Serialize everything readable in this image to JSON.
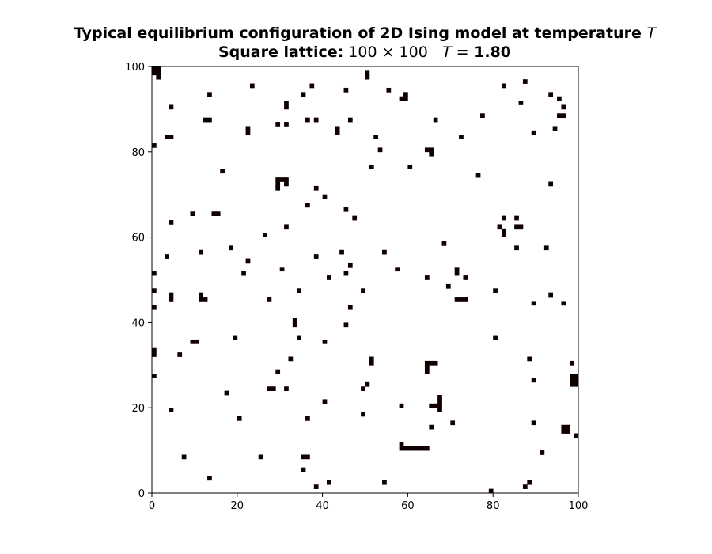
{
  "chart_data": {
    "type": "heatmap",
    "title_prefix": "Typical equilibrium configuration of 2D Ising model at temperature",
    "title_symbol": "T",
    "subtitle_label": "Square lattice:",
    "subtitle_size": "100 × 100",
    "subtitle_temp_symbol": "T",
    "subtitle_temp_value": "= 1.80",
    "grid_size": 100,
    "xlim": [
      0,
      100
    ],
    "ylim": [
      0,
      100
    ],
    "xticks": [
      0,
      20,
      40,
      60,
      80,
      100
    ],
    "yticks": [
      0,
      20,
      40,
      60,
      80,
      100
    ],
    "colors": {
      "spin_up": "#ffffff",
      "spin_down": "#110000"
    },
    "down_spins": [
      [
        0,
        99
      ],
      [
        1,
        99
      ],
      [
        0,
        98
      ],
      [
        1,
        98
      ],
      [
        1,
        97
      ],
      [
        23,
        95
      ],
      [
        37,
        95
      ],
      [
        45,
        94
      ],
      [
        55,
        94
      ],
      [
        82,
        95
      ],
      [
        87,
        96
      ],
      [
        50,
        98
      ],
      [
        50,
        97
      ],
      [
        59,
        93
      ],
      [
        59,
        92
      ],
      [
        58,
        92
      ],
      [
        13,
        93
      ],
      [
        35,
        93
      ],
      [
        93,
        93
      ],
      [
        95,
        92
      ],
      [
        4,
        90
      ],
      [
        31,
        91
      ],
      [
        31,
        90
      ],
      [
        86,
        91
      ],
      [
        96,
        90
      ],
      [
        95,
        88
      ],
      [
        96,
        88
      ],
      [
        77,
        88
      ],
      [
        12,
        87
      ],
      [
        13,
        87
      ],
      [
        29,
        86
      ],
      [
        31,
        86
      ],
      [
        36,
        87
      ],
      [
        38,
        87
      ],
      [
        46,
        87
      ],
      [
        66,
        87
      ],
      [
        22,
        85
      ],
      [
        22,
        84
      ],
      [
        43,
        85
      ],
      [
        43,
        84
      ],
      [
        89,
        84
      ],
      [
        94,
        85
      ],
      [
        3,
        83
      ],
      [
        4,
        83
      ],
      [
        52,
        83
      ],
      [
        72,
        83
      ],
      [
        0,
        81
      ],
      [
        53,
        80
      ],
      [
        64,
        80
      ],
      [
        65,
        80
      ],
      [
        65,
        79
      ],
      [
        16,
        75
      ],
      [
        51,
        76
      ],
      [
        60,
        76
      ],
      [
        76,
        74
      ],
      [
        29,
        73
      ],
      [
        30,
        73
      ],
      [
        31,
        73
      ],
      [
        29,
        72
      ],
      [
        31,
        72
      ],
      [
        29,
        71
      ],
      [
        38,
        71
      ],
      [
        93,
        72
      ],
      [
        40,
        69
      ],
      [
        36,
        67
      ],
      [
        45,
        66
      ],
      [
        47,
        64
      ],
      [
        4,
        63
      ],
      [
        9,
        65
      ],
      [
        14,
        65
      ],
      [
        15,
        65
      ],
      [
        82,
        64
      ],
      [
        85,
        64
      ],
      [
        81,
        62
      ],
      [
        82,
        61
      ],
      [
        82,
        60
      ],
      [
        85,
        62
      ],
      [
        86,
        62
      ],
      [
        31,
        62
      ],
      [
        26,
        60
      ],
      [
        68,
        58
      ],
      [
        18,
        57
      ],
      [
        11,
        56
      ],
      [
        44,
        56
      ],
      [
        54,
        56
      ],
      [
        85,
        57
      ],
      [
        92,
        57
      ],
      [
        3,
        55
      ],
      [
        22,
        54
      ],
      [
        38,
        55
      ],
      [
        46,
        53
      ],
      [
        71,
        52
      ],
      [
        71,
        51
      ],
      [
        0,
        51
      ],
      [
        21,
        51
      ],
      [
        30,
        52
      ],
      [
        45,
        51
      ],
      [
        41,
        50
      ],
      [
        57,
        52
      ],
      [
        64,
        50
      ],
      [
        73,
        50
      ],
      [
        0,
        47
      ],
      [
        4,
        46
      ],
      [
        4,
        45
      ],
      [
        11,
        46
      ],
      [
        11,
        45
      ],
      [
        12,
        45
      ],
      [
        34,
        47
      ],
      [
        49,
        47
      ],
      [
        69,
        48
      ],
      [
        71,
        45
      ],
      [
        72,
        45
      ],
      [
        73,
        45
      ],
      [
        80,
        47
      ],
      [
        93,
        46
      ],
      [
        89,
        44
      ],
      [
        96,
        44
      ],
      [
        0,
        43
      ],
      [
        27,
        45
      ],
      [
        46,
        43
      ],
      [
        33,
        40
      ],
      [
        33,
        39
      ],
      [
        45,
        39
      ],
      [
        9,
        35
      ],
      [
        10,
        35
      ],
      [
        34,
        36
      ],
      [
        40,
        35
      ],
      [
        19,
        36
      ],
      [
        80,
        36
      ],
      [
        0,
        33
      ],
      [
        0,
        32
      ],
      [
        6,
        32
      ],
      [
        32,
        31
      ],
      [
        51,
        31
      ],
      [
        51,
        30
      ],
      [
        64,
        30
      ],
      [
        65,
        30
      ],
      [
        66,
        30
      ],
      [
        64,
        29
      ],
      [
        64,
        28
      ],
      [
        88,
        31
      ],
      [
        98,
        30
      ],
      [
        0,
        27
      ],
      [
        29,
        28
      ],
      [
        89,
        26
      ],
      [
        98,
        27
      ],
      [
        99,
        27
      ],
      [
        98,
        26
      ],
      [
        99,
        26
      ],
      [
        98,
        25
      ],
      [
        99,
        25
      ],
      [
        27,
        24
      ],
      [
        28,
        24
      ],
      [
        31,
        24
      ],
      [
        49,
        24
      ],
      [
        50,
        25
      ],
      [
        17,
        23
      ],
      [
        67,
        22
      ],
      [
        67,
        21
      ],
      [
        65,
        20
      ],
      [
        66,
        20
      ],
      [
        67,
        20
      ],
      [
        67,
        19
      ],
      [
        4,
        19
      ],
      [
        40,
        21
      ],
      [
        58,
        20
      ],
      [
        49,
        18
      ],
      [
        20,
        17
      ],
      [
        36,
        17
      ],
      [
        70,
        16
      ],
      [
        65,
        15
      ],
      [
        89,
        16
      ],
      [
        96,
        15
      ],
      [
        97,
        15
      ],
      [
        96,
        14
      ],
      [
        97,
        14
      ],
      [
        99,
        13
      ],
      [
        58,
        11
      ],
      [
        58,
        10
      ],
      [
        59,
        10
      ],
      [
        60,
        10
      ],
      [
        61,
        10
      ],
      [
        62,
        10
      ],
      [
        63,
        10
      ],
      [
        64,
        10
      ],
      [
        91,
        9
      ],
      [
        7,
        8
      ],
      [
        25,
        8
      ],
      [
        35,
        8
      ],
      [
        36,
        8
      ],
      [
        35,
        5
      ],
      [
        13,
        3
      ],
      [
        38,
        1
      ],
      [
        41,
        2
      ],
      [
        54,
        2
      ],
      [
        79,
        0
      ],
      [
        87,
        1
      ],
      [
        88,
        2
      ]
    ]
  }
}
